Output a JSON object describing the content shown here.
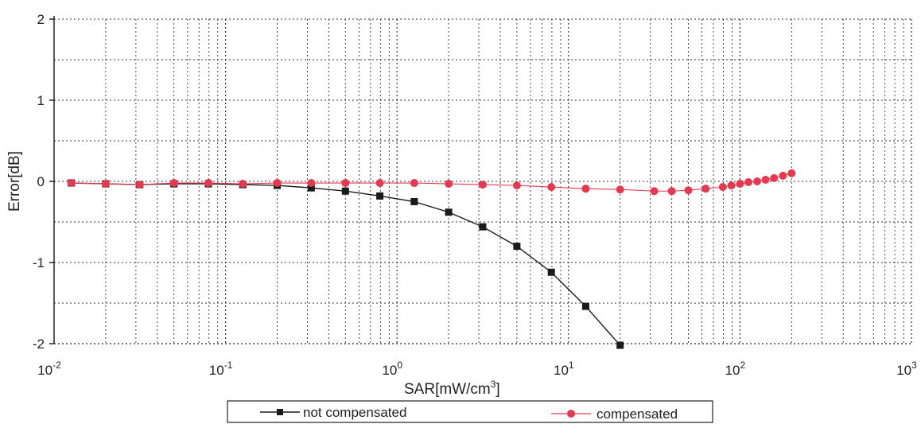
{
  "chart_data": {
    "type": "line",
    "xlabel": "SAR[mW/cm",
    "xlabel_sup": "3",
    "xlabel_close": "]",
    "ylabel": "Error[dB]",
    "xscale": "log",
    "xlim": [
      0.01,
      1000
    ],
    "ylim": [
      -2,
      2
    ],
    "grid": true,
    "legend_position": "bottom",
    "x_ticks": [
      {
        "value": 0.01,
        "base": "10",
        "exp": "-2"
      },
      {
        "value": 0.1,
        "base": "10",
        "exp": "-1"
      },
      {
        "value": 1,
        "base": "10",
        "exp": "0"
      },
      {
        "value": 10,
        "base": "10",
        "exp": "1"
      },
      {
        "value": 100,
        "base": "10",
        "exp": "2"
      },
      {
        "value": 1000,
        "base": "10",
        "exp": "3"
      }
    ],
    "y_ticks": [
      {
        "value": 2,
        "label": "2"
      },
      {
        "value": 1,
        "label": "1"
      },
      {
        "value": 0,
        "label": "0"
      },
      {
        "value": -1,
        "label": "-1"
      },
      {
        "value": -2,
        "label": "-2"
      }
    ],
    "series": [
      {
        "name": "not compensated",
        "color": "#1a1a1a",
        "marker": "square",
        "x": [
          0.0126,
          0.02,
          0.0316,
          0.05,
          0.0794,
          0.126,
          0.2,
          0.316,
          0.5,
          0.794,
          1.26,
          2.0,
          3.16,
          5.0,
          7.94,
          12.6,
          20.0
        ],
        "y": [
          -0.02,
          -0.03,
          -0.04,
          -0.03,
          -0.03,
          -0.04,
          -0.05,
          -0.08,
          -0.12,
          -0.18,
          -0.25,
          -0.38,
          -0.56,
          -0.8,
          -1.12,
          -1.54,
          -2.02
        ]
      },
      {
        "name": "compensated",
        "color": "#e8384f",
        "marker": "circle",
        "x": [
          0.0126,
          0.02,
          0.0316,
          0.05,
          0.0794,
          0.126,
          0.2,
          0.316,
          0.5,
          0.794,
          1.26,
          2.0,
          3.16,
          5.0,
          7.94,
          12.6,
          20.0,
          31.6,
          40.0,
          50.0,
          63.1,
          79.4,
          89.1,
          100,
          112,
          126,
          141,
          158,
          178,
          200
        ],
        "y": [
          -0.02,
          -0.03,
          -0.04,
          -0.02,
          -0.02,
          -0.03,
          -0.02,
          -0.02,
          -0.02,
          -0.02,
          -0.02,
          -0.03,
          -0.04,
          -0.05,
          -0.07,
          -0.09,
          -0.1,
          -0.12,
          -0.12,
          -0.11,
          -0.09,
          -0.07,
          -0.05,
          -0.03,
          -0.01,
          0.0,
          0.02,
          0.04,
          0.07,
          0.1
        ]
      }
    ]
  }
}
